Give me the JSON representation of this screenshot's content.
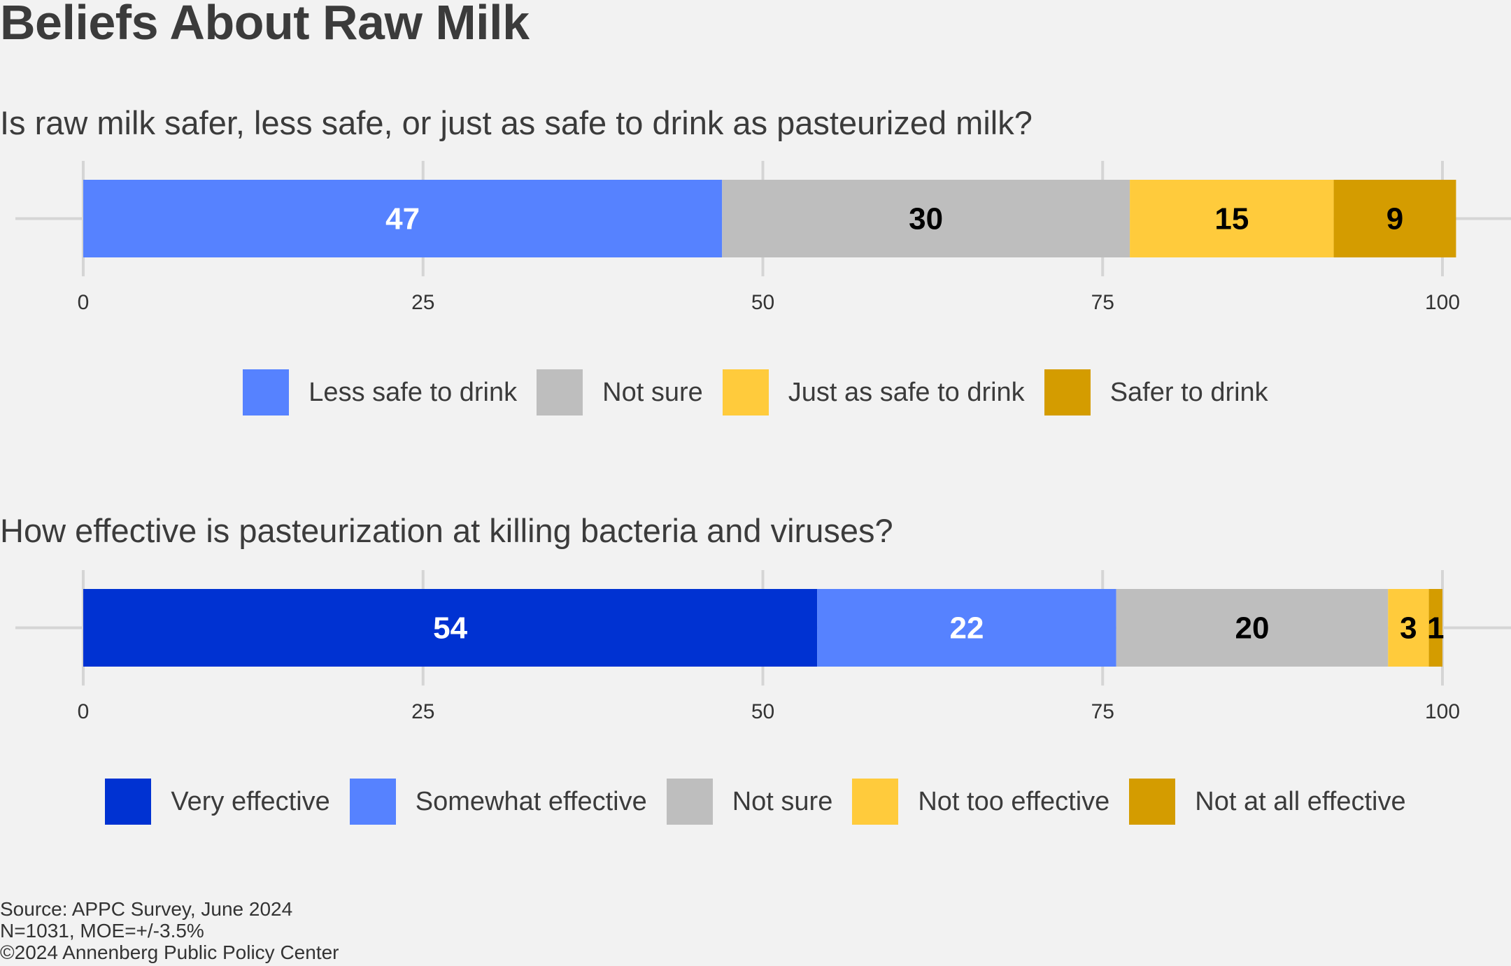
{
  "title": "Beliefs About Raw Milk",
  "caption": [
    "Source: APPC Survey, June 2024",
    "N=1031, MOE=+/-3.5%",
    "©2024 Annenberg Public Policy Center"
  ],
  "chart_data": [
    {
      "type": "bar",
      "orientation": "horizontal",
      "stacked": true,
      "title": "Is raw milk safer, less safe, or just as safe to drink as pasteurized milk?",
      "xlim": [
        0,
        100
      ],
      "xticks": [
        0,
        25,
        50,
        75,
        100
      ],
      "legend_position": "bottom",
      "series": [
        {
          "name": "Less safe to drink",
          "value": 47,
          "color": "#5682ff",
          "label_color": "#ffffff"
        },
        {
          "name": "Not sure",
          "value": 30,
          "color": "#bebebe",
          "label_color": "#000000"
        },
        {
          "name": "Just as safe to drink",
          "value": 15,
          "color": "#ffcb3c",
          "label_color": "#000000"
        },
        {
          "name": "Safer to drink",
          "value": 9,
          "color": "#d49c00",
          "label_color": "#000000"
        }
      ]
    },
    {
      "type": "bar",
      "orientation": "horizontal",
      "stacked": true,
      "title": "How effective is pasteurization at killing bacteria and viruses?",
      "xlim": [
        0,
        100
      ],
      "xticks": [
        0,
        25,
        50,
        75,
        100
      ],
      "legend_position": "bottom",
      "series": [
        {
          "name": "Very effective",
          "value": 54,
          "color": "#0032d2",
          "label_color": "#ffffff"
        },
        {
          "name": "Somewhat effective",
          "value": 22,
          "color": "#5682ff",
          "label_color": "#ffffff"
        },
        {
          "name": "Not sure",
          "value": 20,
          "color": "#bebebe",
          "label_color": "#000000"
        },
        {
          "name": "Not too effective",
          "value": 3,
          "color": "#ffcb3c",
          "label_color": "#000000"
        },
        {
          "name": "Not at all effective",
          "value": 1,
          "color": "#d49c00",
          "label_color": "#000000"
        }
      ]
    }
  ]
}
